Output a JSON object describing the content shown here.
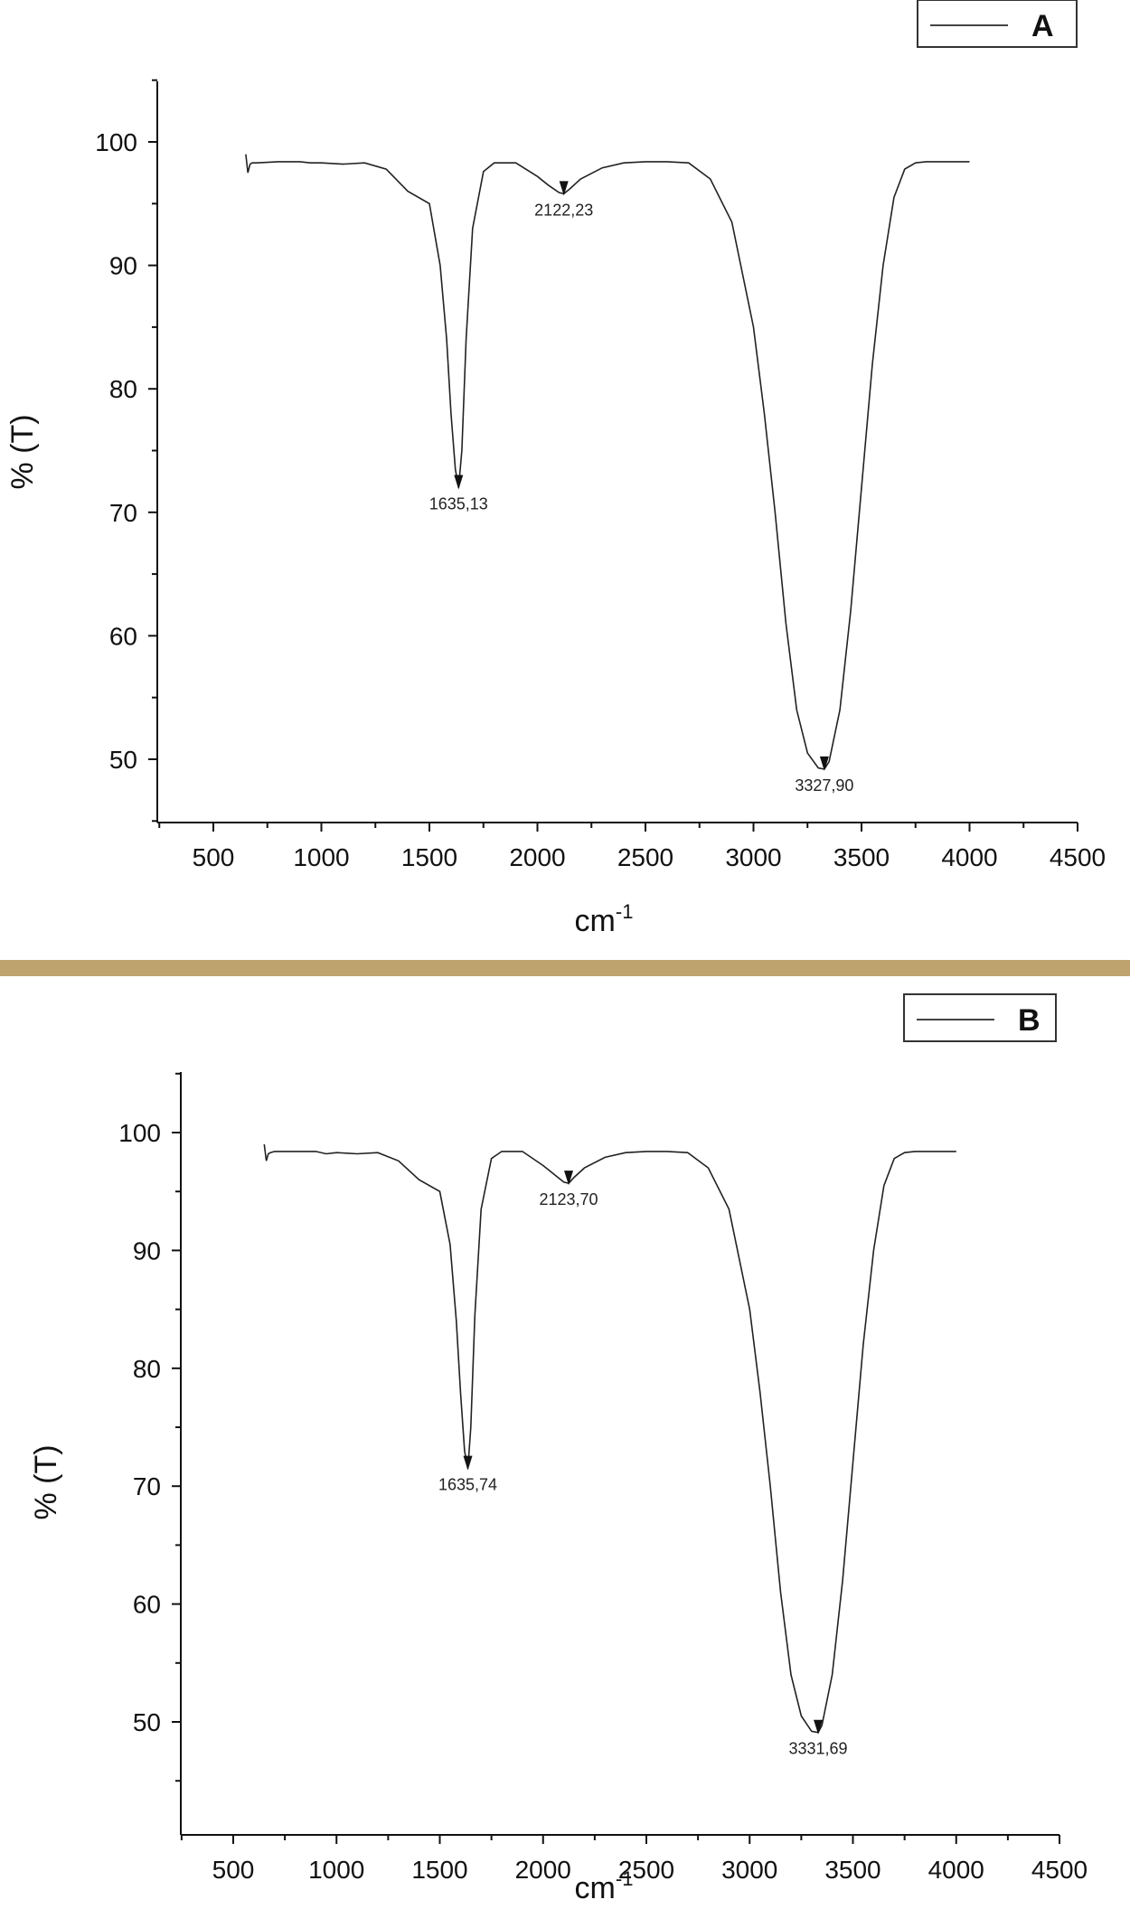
{
  "chart_data": [
    {
      "type": "line",
      "panel": "A",
      "legend": "A",
      "legend_position": "top-right",
      "xlabel": "cm-1",
      "xlabel_base": "cm",
      "xlabel_sup": "-1",
      "ylabel": "% (T)",
      "xlim": [
        250,
        4500
      ],
      "ylim": [
        45,
        105
      ],
      "xticks": [
        500,
        1000,
        1500,
        2000,
        2500,
        3000,
        3500,
        4000,
        4500
      ],
      "yticks": [
        50,
        60,
        70,
        80,
        90,
        100
      ],
      "grid": false,
      "series": [
        {
          "x": [
            650,
            660,
            670,
            680,
            700,
            800,
            900,
            950,
            1000,
            1100,
            1200,
            1300,
            1400,
            1500,
            1550,
            1580,
            1600,
            1620,
            1635,
            1650,
            1670,
            1700,
            1750,
            1800,
            1900,
            2000,
            2050,
            2100,
            2122,
            2150,
            2200,
            2300,
            2400,
            2500,
            2600,
            2700,
            2800,
            2900,
            3000,
            3050,
            3100,
            3150,
            3200,
            3250,
            3300,
            3328,
            3350,
            3400,
            3450,
            3500,
            3550,
            3600,
            3650,
            3700,
            3750,
            3800,
            3900,
            4000
          ],
          "y": [
            99.0,
            97.5,
            98.2,
            98.3,
            98.3,
            98.4,
            98.4,
            98.3,
            98.3,
            98.2,
            98.3,
            97.8,
            96.0,
            95.0,
            90.0,
            84.0,
            78.0,
            73.5,
            72.0,
            75.0,
            84.0,
            93.0,
            97.6,
            98.3,
            98.3,
            97.2,
            96.5,
            95.9,
            95.8,
            96.2,
            97.0,
            97.9,
            98.3,
            98.4,
            98.4,
            98.3,
            97.0,
            93.5,
            85.0,
            78.0,
            70.0,
            61.0,
            54.0,
            50.5,
            49.3,
            49.2,
            49.8,
            54.0,
            62.0,
            72.0,
            82.0,
            90.0,
            95.5,
            97.8,
            98.3,
            98.4,
            98.4,
            98.4
          ]
        }
      ],
      "annotations": [
        {
          "x": 1635.13,
          "y": 72.0,
          "text": "1635,13"
        },
        {
          "x": 2122.23,
          "y": 95.8,
          "text": "2122,23"
        },
        {
          "x": 3327.9,
          "y": 49.2,
          "text": "3327,90"
        }
      ]
    },
    {
      "type": "line",
      "panel": "B",
      "legend": "B",
      "legend_position": "top-right",
      "xlabel": "cm-1",
      "xlabel_base": "cm",
      "xlabel_sup": "-1",
      "ylabel": "% (T)",
      "xlim": [
        250,
        4500
      ],
      "ylim": [
        45,
        105
      ],
      "xticks": [
        500,
        1000,
        1500,
        2000,
        2500,
        3000,
        3500,
        4000,
        4500
      ],
      "yticks": [
        50,
        60,
        70,
        80,
        90,
        100
      ],
      "grid": false,
      "series": [
        {
          "x": [
            650,
            660,
            670,
            680,
            700,
            800,
            900,
            950,
            1000,
            1100,
            1200,
            1300,
            1400,
            1500,
            1550,
            1580,
            1600,
            1620,
            1636,
            1650,
            1670,
            1700,
            1750,
            1800,
            1900,
            2000,
            2050,
            2100,
            2124,
            2150,
            2200,
            2300,
            2400,
            2500,
            2600,
            2700,
            2800,
            2900,
            3000,
            3050,
            3100,
            3150,
            3200,
            3250,
            3300,
            3332,
            3350,
            3400,
            3450,
            3500,
            3550,
            3600,
            3650,
            3700,
            3750,
            3800,
            3900,
            4000
          ],
          "y": [
            99.0,
            97.6,
            98.2,
            98.3,
            98.4,
            98.4,
            98.4,
            98.2,
            98.3,
            98.2,
            98.3,
            97.6,
            96.0,
            95.0,
            90.5,
            84.0,
            78.0,
            73.0,
            71.5,
            75.0,
            84.5,
            93.5,
            97.8,
            98.4,
            98.4,
            97.2,
            96.5,
            95.8,
            95.7,
            96.2,
            97.0,
            97.9,
            98.3,
            98.4,
            98.4,
            98.3,
            97.0,
            93.5,
            85.0,
            78.0,
            70.0,
            61.0,
            54.0,
            50.5,
            49.2,
            49.1,
            49.7,
            54.0,
            62.0,
            72.0,
            82.0,
            90.0,
            95.5,
            97.8,
            98.3,
            98.4,
            98.4,
            98.4
          ]
        }
      ],
      "annotations": [
        {
          "x": 1635.74,
          "y": 71.5,
          "text": "1635,74"
        },
        {
          "x": 2123.7,
          "y": 95.7,
          "text": "2123,70"
        },
        {
          "x": 3331.69,
          "y": 49.1,
          "text": "3331,69"
        }
      ]
    }
  ]
}
